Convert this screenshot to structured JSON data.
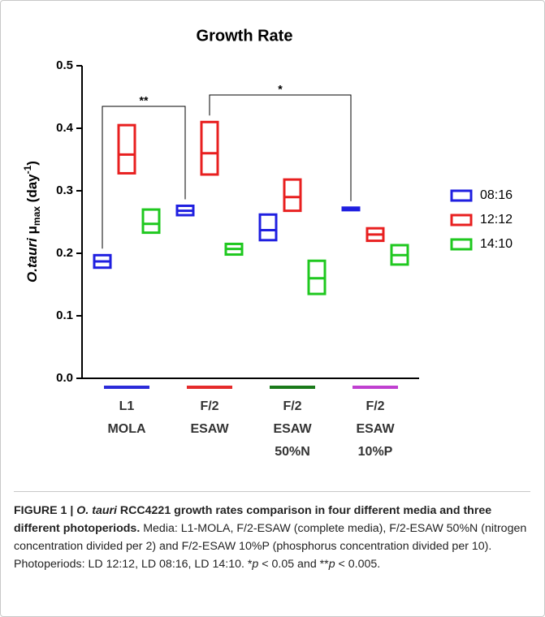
{
  "chart_data": {
    "type": "floating-box",
    "title": "Growth Rate",
    "ylabel": {
      "species": "O.tauri",
      "symbol": " μ",
      "subscript": "max",
      "unit": " (day",
      "superscript": "-1",
      "close": ")"
    },
    "categories": [
      [
        "L1",
        "MOLA"
      ],
      [
        "F/2",
        "ESAW"
      ],
      [
        "F/2",
        "ESAW",
        "50%N"
      ],
      [
        "F/2",
        "ESAW",
        "10%P"
      ]
    ],
    "category_colors": [
      "#2b2bd9",
      "#e52b2b",
      "#1a7a1a",
      "#c040d0"
    ],
    "series": [
      {
        "name": "08:16",
        "color": "#1f1fe0",
        "min": [
          0.177,
          0.261,
          0.221,
          0.269
        ],
        "values": [
          0.187,
          0.268,
          0.237,
          0.271
        ],
        "max": [
          0.197,
          0.276,
          0.262,
          0.273
        ]
      },
      {
        "name": "12:12",
        "color": "#e81f1f",
        "min": [
          0.328,
          0.326,
          0.268,
          0.22
        ],
        "values": [
          0.358,
          0.36,
          0.29,
          0.23
        ],
        "max": [
          0.405,
          0.41,
          0.318,
          0.24
        ]
      },
      {
        "name": "14:10",
        "color": "#1fc81f",
        "min": [
          0.233,
          0.198,
          0.135,
          0.182
        ],
        "values": [
          0.247,
          0.207,
          0.16,
          0.197
        ],
        "max": [
          0.27,
          0.215,
          0.188,
          0.213
        ]
      }
    ],
    "annotations": [
      "**",
      "*"
    ],
    "ylim": [
      0,
      0.5
    ],
    "yticks": [
      {
        "value": 0,
        "label": "0.0"
      },
      0.1,
      0.2,
      0.3,
      0.4,
      0.5
    ]
  },
  "caption": {
    "figure": "FIGURE 1 | ",
    "species": "O. tauri",
    "headline": " RCC4221 growth rates comparison in four different media and three different photoperiods.",
    "body": " Media: L1-MOLA, F/2-ESAW (complete media), F/2-ESAW 50%N (nitrogen concentration divided per 2) and F/2-ESAW 10%P (phosphorus concentration divided per 10). Photoperiods: LD 12:12, LD 08:16, LD 14:10. *",
    "p1": "p",
    "mid": " < 0.05 and **",
    "p2": "p",
    "end": " < 0.005."
  }
}
